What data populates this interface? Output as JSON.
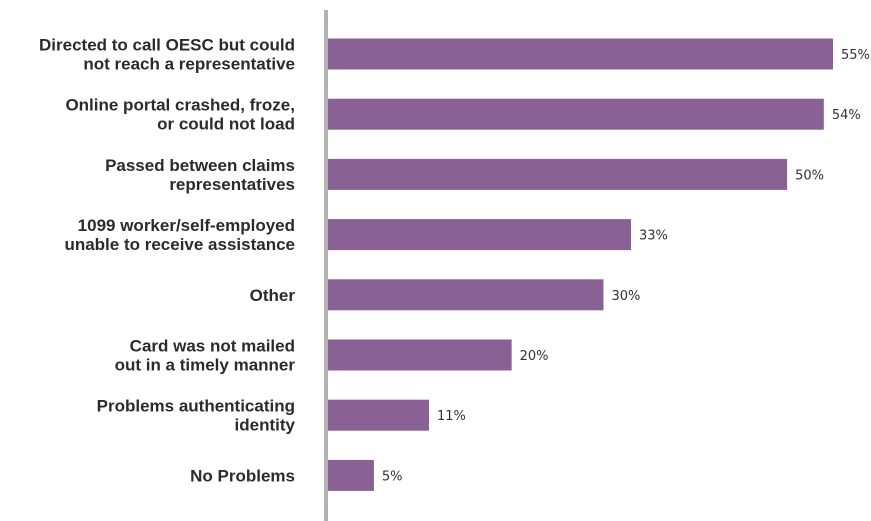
{
  "chart_data": {
    "type": "bar",
    "orientation": "horizontal",
    "categories": [
      [
        "Directed to call OESC but could",
        "not reach a representative"
      ],
      [
        "Online portal crashed, froze,",
        "or could not load"
      ],
      [
        "Passed between claims",
        "representatives"
      ],
      [
        "1099 worker/self-employed",
        "unable to receive assistance"
      ],
      [
        "Other"
      ],
      [
        "Card was not mailed",
        "out in a timely manner"
      ],
      [
        "Problems authenticating",
        "identity"
      ],
      [
        "No Problems"
      ]
    ],
    "values": [
      55,
      54,
      50,
      33,
      30,
      20,
      11,
      5
    ],
    "value_labels": [
      "55%",
      "54%",
      "50%",
      "33%",
      "30%",
      "20%",
      "11%",
      "5%"
    ],
    "unit": "%",
    "xlim": [
      0,
      55
    ],
    "grid": false,
    "legend": "none",
    "colors": {
      "bar": "#8a6194",
      "axis": "#b3b3b3",
      "label": "#2b2b2b",
      "value": "#333333"
    }
  }
}
